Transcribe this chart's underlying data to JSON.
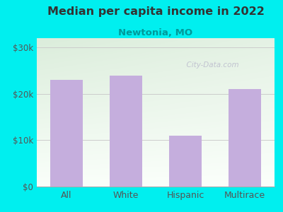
{
  "title": "Median per capita income in 2022",
  "subtitle": "Newtonia, MO",
  "categories": [
    "All",
    "White",
    "Hispanic",
    "Multirace"
  ],
  "values": [
    23000,
    24000,
    11000,
    21000
  ],
  "bar_color": "#c5aedd",
  "background_color": "#00efef",
  "title_color": "#333333",
  "subtitle_color": "#00999a",
  "tick_label_color": "#555555",
  "ylim": [
    0,
    32000
  ],
  "yticks": [
    0,
    10000,
    20000,
    30000
  ],
  "ytick_labels": [
    "$0",
    "$10k",
    "$20k",
    "$30k"
  ],
  "watermark": "  City-Data.com",
  "watermark_color": "#bbbbcc",
  "grid_color": "#cccccc",
  "bottom_spine_color": "#aaaaaa",
  "plot_bg_top": "#ddeedd",
  "plot_bg_bottom": "#f8fff8"
}
